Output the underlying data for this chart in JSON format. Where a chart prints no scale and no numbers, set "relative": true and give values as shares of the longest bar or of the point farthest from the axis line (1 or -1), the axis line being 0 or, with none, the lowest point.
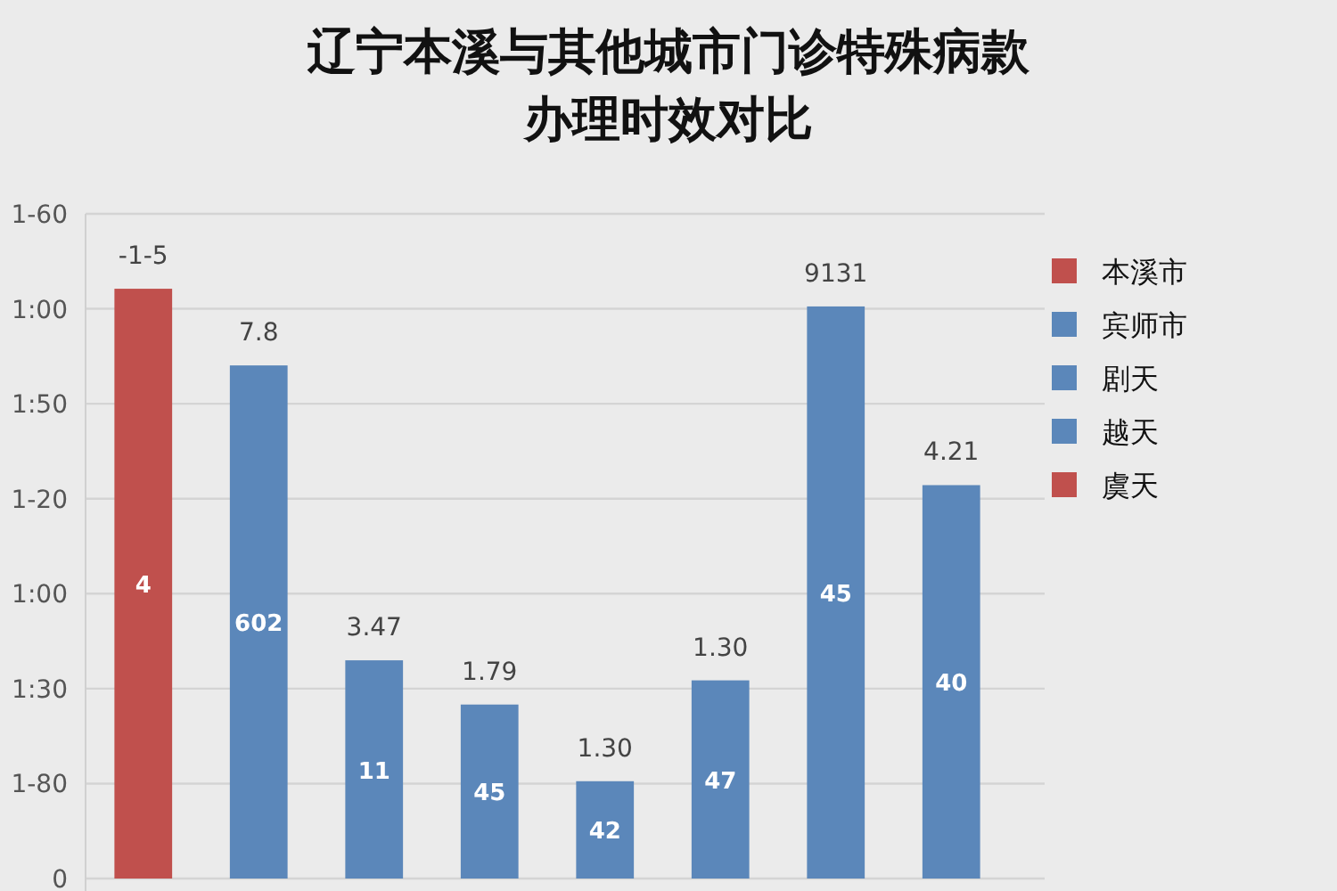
{
  "chart_data": {
    "type": "bar",
    "title": "辽宁本溪与其他城市门诊特殊病款办理时效对比",
    "relative": true,
    "stacked": true,
    "grid": "y",
    "legend": "right",
    "categories": [
      null,
      null,
      null,
      null,
      null,
      null,
      null,
      null
    ],
    "series": [
      {
        "name": "本溪市",
        "color": "#c0504d",
        "values": [
          1,
          null,
          null,
          null,
          null,
          null,
          null,
          null
        ]
      },
      {
        "name": "宾师市",
        "color": "#5b87ba",
        "values": [
          null,
          0.87,
          0.37,
          0.295,
          0.165,
          0.336,
          0.97,
          0.667
        ]
      },
      {
        "name": "剧天",
        "color": "#5b87ba",
        "values": [
          null,
          null,
          null,
          null,
          null,
          null,
          null,
          null
        ]
      },
      {
        "name": "越天",
        "color": "#5b87ba",
        "values": [
          null,
          null,
          null,
          null,
          null,
          null,
          null,
          null
        ]
      },
      {
        "name": "虞天",
        "color": "#c0504d",
        "values": [
          null,
          null,
          null,
          null,
          null,
          null,
          null,
          null
        ]
      }
    ],
    "value_labels": [
      "-1-5",
      "7.8",
      "3.47",
      "1.79",
      "1.30",
      "1.30",
      "9131",
      "4.21"
    ],
    "annotations": [
      "1-60",
      "1:00",
      "1:50",
      "1-20",
      "1:00",
      "1:30",
      "1-80",
      "0",
      "4",
      "602",
      "11",
      "45",
      "42",
      "47",
      "45",
      "40"
    ]
  }
}
